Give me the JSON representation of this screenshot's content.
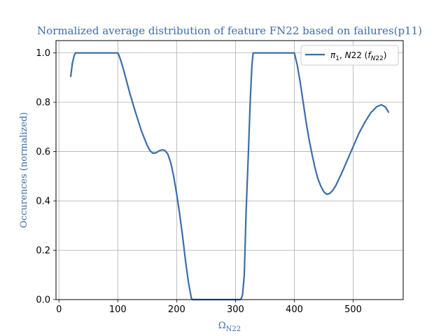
{
  "chart_data": {
    "type": "line",
    "title": "Normalized average distribution of feature FN22 based on failures(p11)",
    "xlabel": "Ω_{N22}",
    "ylabel": "Occurences (normalized)",
    "xlim": [
      -5,
      585
    ],
    "ylim": [
      0,
      1.05
    ],
    "xticks": [
      0,
      100,
      200,
      300,
      400,
      500
    ],
    "yticks": [
      0.0,
      0.2,
      0.4,
      0.6,
      0.8,
      1.0
    ],
    "xtick_labels": [
      "0",
      "100",
      "200",
      "300",
      "400",
      "500"
    ],
    "ytick_labels": [
      "0.0",
      "0.2",
      "0.4",
      "0.6",
      "0.8",
      "1.0"
    ],
    "grid": true,
    "legend_position": "top-right",
    "series": [
      {
        "name": "π₁, N22 (f_{N22})",
        "color": "#3b6ea8",
        "x": [
          20,
          23,
          26,
          28,
          30,
          40,
          60,
          80,
          100,
          102,
          105,
          110,
          120,
          130,
          140,
          150,
          155,
          160,
          165,
          170,
          175,
          180,
          185,
          190,
          195,
          200,
          205,
          210,
          215,
          220,
          225,
          227,
          240,
          260,
          280,
          300,
          308,
          310,
          312,
          315,
          318,
          322,
          325,
          328,
          330,
          340,
          360,
          380,
          400,
          402,
          405,
          410,
          415,
          420,
          425,
          430,
          435,
          440,
          445,
          450,
          455,
          460,
          465,
          470,
          480,
          490,
          500,
          510,
          520,
          530,
          540,
          548,
          555,
          560
        ],
        "y": [
          0.905,
          0.96,
          0.99,
          1.0,
          1.0,
          1.0,
          1.0,
          1.0,
          1.0,
          0.99,
          0.97,
          0.93,
          0.84,
          0.76,
          0.685,
          0.625,
          0.603,
          0.593,
          0.595,
          0.603,
          0.607,
          0.605,
          0.59,
          0.555,
          0.5,
          0.43,
          0.35,
          0.26,
          0.16,
          0.07,
          0.005,
          0.0,
          0.0,
          0.0,
          0.0,
          0.0,
          0.0,
          0.005,
          0.02,
          0.1,
          0.35,
          0.6,
          0.8,
          0.95,
          1.0,
          1.0,
          1.0,
          1.0,
          1.0,
          0.98,
          0.95,
          0.88,
          0.8,
          0.72,
          0.65,
          0.59,
          0.535,
          0.49,
          0.46,
          0.437,
          0.427,
          0.43,
          0.442,
          0.46,
          0.51,
          0.565,
          0.62,
          0.675,
          0.72,
          0.758,
          0.782,
          0.79,
          0.78,
          0.76
        ]
      }
    ]
  }
}
